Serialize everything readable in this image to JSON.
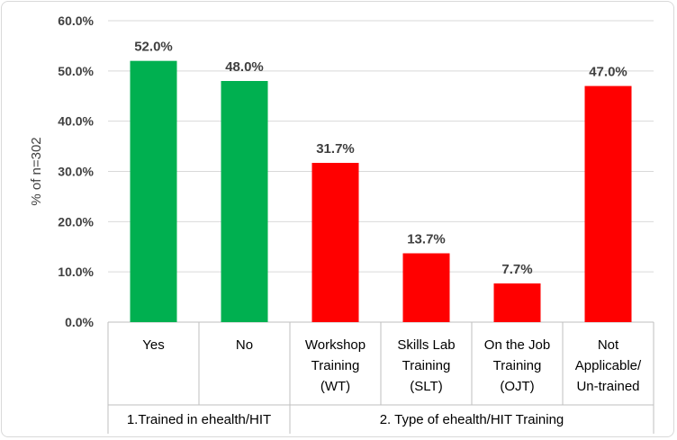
{
  "chart_data": {
    "type": "bar",
    "title": "",
    "ylabel": "% of n=302",
    "ylim": [
      0,
      60
    ],
    "yticks": [
      "0.0%",
      "10.0%",
      "20.0%",
      "30.0%",
      "40.0%",
      "50.0%",
      "60.0%"
    ],
    "grid": true,
    "groups": [
      {
        "label": "1.Trained in ehealth/HIT",
        "count": 2
      },
      {
        "label": "2. Type of ehealth/HIT Training",
        "count": 4
      }
    ],
    "categories": [
      [
        "Yes"
      ],
      [
        "No"
      ],
      [
        "Workshop",
        "Training",
        "(WT)"
      ],
      [
        "Skills Lab",
        "Training",
        "(SLT)"
      ],
      [
        "On the Job",
        "Training",
        "(OJT)"
      ],
      [
        "Not",
        "Applicable/",
        "Un-trained"
      ]
    ],
    "values": [
      52.0,
      48.0,
      31.7,
      13.7,
      7.7,
      47.0
    ],
    "value_labels": [
      "52.0%",
      "48.0%",
      "31.7%",
      "13.7%",
      "7.7%",
      "47.0%"
    ],
    "colors": [
      "#00b050",
      "#00b050",
      "#ff0000",
      "#ff0000",
      "#ff0000",
      "#ff0000"
    ]
  }
}
